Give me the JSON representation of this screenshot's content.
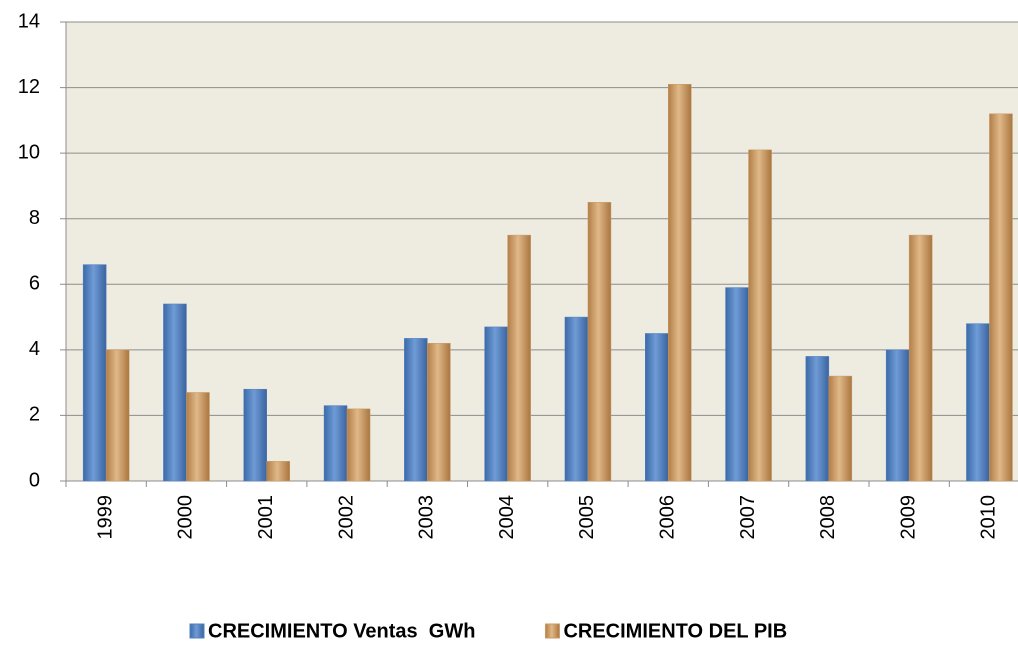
{
  "chart_data": {
    "type": "bar",
    "categories": [
      "1999",
      "2000",
      "2001",
      "2002",
      "2003",
      "2004",
      "2005",
      "2006",
      "2007",
      "2008",
      "2009",
      "2010"
    ],
    "series": [
      {
        "name": "CRECIMIENTO Ventas  GWh",
        "color": "#4f81bd",
        "values": [
          6.6,
          5.4,
          2.8,
          2.3,
          4.35,
          4.7,
          5.0,
          4.5,
          5.9,
          3.8,
          4.0,
          4.8
        ]
      },
      {
        "name": "CRECIMIENTO DEL PIB",
        "color": "#c99a66",
        "values": [
          4.0,
          2.7,
          0.6,
          2.2,
          4.2,
          7.5,
          8.5,
          12.1,
          10.1,
          3.2,
          7.5,
          11.2
        ]
      }
    ],
    "ylim": [
      0,
      14
    ],
    "yticks": [
      0,
      2,
      4,
      6,
      8,
      10,
      12,
      14
    ],
    "grid": true,
    "legend": "bottom"
  }
}
